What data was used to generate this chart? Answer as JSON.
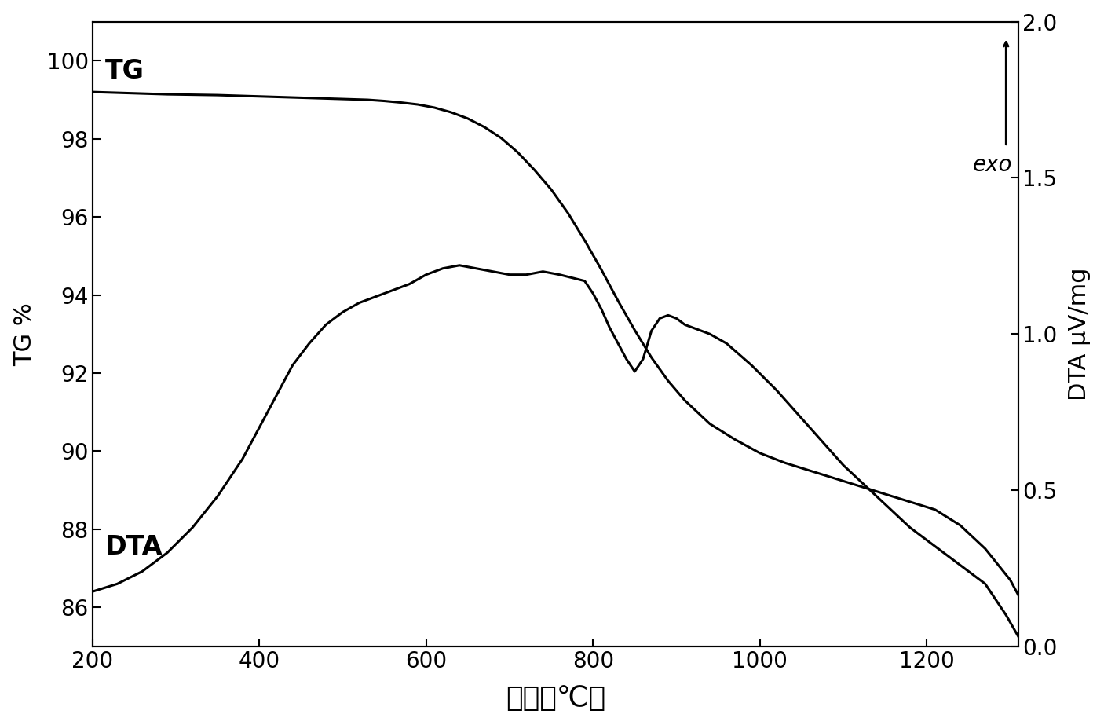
{
  "title": "",
  "xlabel": "温度（℃）",
  "ylabel_left": "TG %",
  "ylabel_right": "DTA μV/mg",
  "xlim": [
    200,
    1310
  ],
  "ylim_left": [
    85.0,
    101.0
  ],
  "ylim_right": [
    0.0,
    2.0
  ],
  "xticks": [
    200,
    400,
    600,
    800,
    1000,
    1200
  ],
  "yticks_left": [
    86,
    88,
    90,
    92,
    94,
    96,
    98,
    100
  ],
  "yticks_right": [
    0.0,
    0.5,
    1.0,
    1.5,
    2.0
  ],
  "tg_label": "TG",
  "dta_label": "DTA",
  "exo_label": "exo",
  "background_color": "#ffffff",
  "line_color": "#000000",
  "tg_x": [
    200,
    230,
    260,
    290,
    320,
    350,
    380,
    410,
    440,
    470,
    500,
    530,
    550,
    570,
    590,
    610,
    630,
    650,
    670,
    690,
    710,
    730,
    750,
    770,
    790,
    810,
    830,
    850,
    870,
    890,
    910,
    940,
    970,
    1000,
    1030,
    1060,
    1090,
    1120,
    1150,
    1180,
    1210,
    1240,
    1270,
    1300,
    1310
  ],
  "tg_y": [
    99.2,
    99.18,
    99.16,
    99.14,
    99.13,
    99.12,
    99.1,
    99.08,
    99.06,
    99.04,
    99.02,
    99.0,
    98.97,
    98.93,
    98.88,
    98.8,
    98.68,
    98.52,
    98.3,
    98.02,
    97.65,
    97.2,
    96.7,
    96.1,
    95.4,
    94.65,
    93.85,
    93.1,
    92.4,
    91.8,
    91.3,
    90.7,
    90.3,
    89.95,
    89.7,
    89.5,
    89.3,
    89.1,
    88.9,
    88.7,
    88.5,
    88.1,
    87.5,
    86.7,
    86.3
  ],
  "dta_x": [
    200,
    230,
    260,
    290,
    320,
    350,
    380,
    400,
    420,
    440,
    460,
    480,
    500,
    520,
    540,
    560,
    580,
    600,
    620,
    640,
    660,
    680,
    700,
    720,
    740,
    760,
    775,
    790,
    800,
    810,
    820,
    830,
    840,
    850,
    860,
    870,
    880,
    890,
    900,
    910,
    920,
    930,
    940,
    960,
    990,
    1020,
    1060,
    1100,
    1140,
    1180,
    1210,
    1240,
    1270,
    1295,
    1310
  ],
  "dta_y": [
    0.175,
    0.2,
    0.24,
    0.3,
    0.38,
    0.48,
    0.6,
    0.7,
    0.8,
    0.9,
    0.97,
    1.03,
    1.07,
    1.1,
    1.12,
    1.14,
    1.16,
    1.19,
    1.21,
    1.22,
    1.21,
    1.2,
    1.19,
    1.19,
    1.2,
    1.19,
    1.18,
    1.17,
    1.13,
    1.08,
    1.02,
    0.97,
    0.92,
    0.88,
    0.92,
    1.01,
    1.05,
    1.06,
    1.05,
    1.03,
    1.02,
    1.01,
    1.0,
    0.97,
    0.9,
    0.82,
    0.7,
    0.58,
    0.48,
    0.38,
    0.32,
    0.26,
    0.2,
    0.1,
    0.03
  ]
}
